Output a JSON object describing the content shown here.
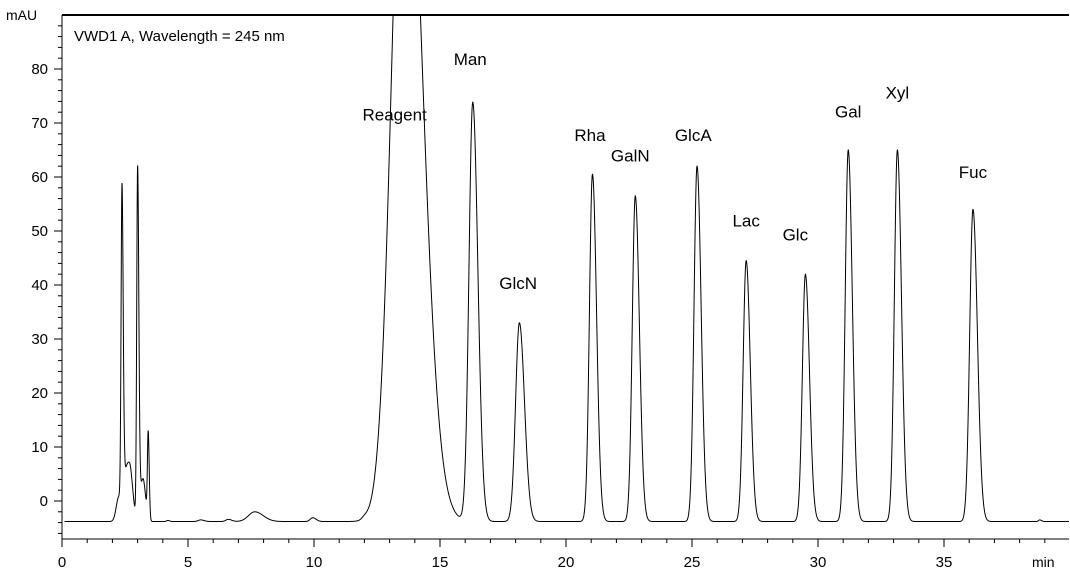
{
  "chart_data": {
    "type": "line",
    "title": "",
    "xlabel": "min",
    "ylabel": "mAU",
    "xlim": [
      0,
      40
    ],
    "ylim": [
      -7,
      93
    ],
    "x_ticks": [
      0,
      5,
      10,
      15,
      20,
      25,
      30,
      35
    ],
    "y_ticks": [
      0,
      10,
      20,
      30,
      40,
      50,
      60,
      70,
      80
    ],
    "grid": false,
    "legend": {
      "text": "VWD1 A, Wavelength = 245 nm",
      "position": "top-left"
    },
    "baseline": -3.8,
    "series": [
      {
        "name": "",
        "peaks": [
          {
            "t": 2.25,
            "h": 0.6,
            "w": 0.1
          },
          {
            "t": 2.38,
            "h": 53,
            "w": 0.035
          },
          {
            "t": 2.5,
            "h": 2.0,
            "w": 0.1
          },
          {
            "t": 2.62,
            "h": 1.3,
            "w": 0.1
          },
          {
            "t": 2.73,
            "h": 0.9,
            "w": 0.08
          },
          {
            "t": 3.0,
            "h": 60,
            "w": 0.035
          },
          {
            "t": 3.12,
            "h": 1.8,
            "w": 0.08
          },
          {
            "t": 3.25,
            "h": 0.9,
            "w": 0.07
          },
          {
            "t": 3.42,
            "h": 12,
            "w": 0.03
          },
          {
            "t": 4.2,
            "h": -3.6,
            "w": 0.05
          },
          {
            "t": 5.5,
            "h": -3.5,
            "w": 0.1
          },
          {
            "t": 6.6,
            "h": -3.4,
            "w": 0.1
          },
          {
            "t": 7.65,
            "h": -2.0,
            "w": 0.25
          },
          {
            "t": 9.95,
            "h": -3.1,
            "w": 0.1
          },
          {
            "t": 12.0,
            "h": -3.4,
            "w": 0.1
          },
          {
            "t": 13.6,
            "h": 140,
            "w": 0.5
          },
          {
            "t": 16.3,
            "h": 73.8,
            "w": 0.15
          },
          {
            "t": 18.15,
            "h": 33,
            "w": 0.15
          },
          {
            "t": 21.05,
            "h": 60.5,
            "w": 0.12
          },
          {
            "t": 22.75,
            "h": 56.5,
            "w": 0.12
          },
          {
            "t": 25.2,
            "h": 62,
            "w": 0.12
          },
          {
            "t": 27.15,
            "h": 44.5,
            "w": 0.12
          },
          {
            "t": 29.5,
            "h": 42,
            "w": 0.12
          },
          {
            "t": 31.2,
            "h": 65,
            "w": 0.12
          },
          {
            "t": 33.15,
            "h": 65,
            "w": 0.12
          },
          {
            "t": 36.15,
            "h": 54,
            "w": 0.13
          },
          {
            "t": 38.8,
            "h": -3.5,
            "w": 0.05
          }
        ]
      }
    ],
    "peak_labels": [
      {
        "text": "Reagent",
        "x": 13.2,
        "y": 70.5
      },
      {
        "text": "Man",
        "x": 16.2,
        "y": 80.7
      },
      {
        "text": "GlcN",
        "x": 18.1,
        "y": 39.3
      },
      {
        "text": "Rha",
        "x": 20.95,
        "y": 66.7
      },
      {
        "text": "GalN",
        "x": 22.55,
        "y": 62.9
      },
      {
        "text": "GlcA",
        "x": 25.05,
        "y": 66.7
      },
      {
        "text": "Lac",
        "x": 27.15,
        "y": 50.8
      },
      {
        "text": "Glc",
        "x": 29.1,
        "y": 48.2
      },
      {
        "text": "Gal",
        "x": 31.2,
        "y": 71.0
      },
      {
        "text": "Xyl",
        "x": 33.15,
        "y": 74.5
      },
      {
        "text": "Fuc",
        "x": 36.15,
        "y": 59.8
      }
    ]
  }
}
